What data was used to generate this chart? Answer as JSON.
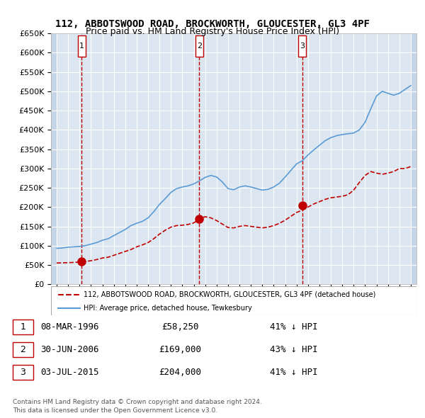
{
  "title": "112, ABBOTSWOOD ROAD, BROCKWORTH, GLOUCESTER, GL3 4PF",
  "subtitle": "Price paid vs. HM Land Registry's House Price Index (HPI)",
  "ylabel_vals": [
    "£0",
    "£50K",
    "£100K",
    "£150K",
    "£200K",
    "£250K",
    "£300K",
    "£350K",
    "£400K",
    "£450K",
    "£500K",
    "£550K",
    "£600K",
    "£650K"
  ],
  "ylim": [
    0,
    650000
  ],
  "yticks": [
    0,
    50000,
    100000,
    150000,
    200000,
    250000,
    300000,
    350000,
    400000,
    450000,
    500000,
    550000,
    600000,
    650000
  ],
  "xlim_start": 1993.5,
  "xlim_end": 2025.5,
  "sale_dates": [
    1996.18,
    2006.49,
    2015.5
  ],
  "sale_prices": [
    58250,
    169000,
    204000
  ],
  "sale_labels": [
    "1",
    "2",
    "3"
  ],
  "sale_date_strings": [
    "08-MAR-1996",
    "30-JUN-2006",
    "03-JUL-2015"
  ],
  "sale_price_strings": [
    "£58,250",
    "£169,000",
    "£204,000"
  ],
  "sale_pct_strings": [
    "41% ↓ HPI",
    "43% ↓ HPI",
    "41% ↓ HPI"
  ],
  "hpi_line_color": "#5b9bd5",
  "price_line_color": "#c00000",
  "dot_color": "#c00000",
  "vline_color": "#c00000",
  "bg_chart": "#dce6f1",
  "bg_hatch": "#c5d5e8",
  "legend_box_color": "#c00000",
  "legend_label_red": "112, ABBOTSWOOD ROAD, BROCKWORTH, GLOUCESTER, GL3 4PF (detached house)",
  "legend_label_blue": "HPI: Average price, detached house, Tewkesbury",
  "footer1": "Contains HM Land Registry data © Crown copyright and database right 2024.",
  "footer2": "This data is licensed under the Open Government Licence v3.0.",
  "hpi_years": [
    1994,
    1994.5,
    1995,
    1995.5,
    1996,
    1996.5,
    1997,
    1997.5,
    1998,
    1998.5,
    1999,
    1999.5,
    2000,
    2000.5,
    2001,
    2001.5,
    2002,
    2002.5,
    2003,
    2003.5,
    2004,
    2004.5,
    2005,
    2005.5,
    2006,
    2006.5,
    2007,
    2007.5,
    2008,
    2008.5,
    2009,
    2009.5,
    2010,
    2010.5,
    2011,
    2011.5,
    2012,
    2012.5,
    2013,
    2013.5,
    2014,
    2014.5,
    2015,
    2015.5,
    2016,
    2016.5,
    2017,
    2017.5,
    2018,
    2018.5,
    2019,
    2019.5,
    2020,
    2020.5,
    2021,
    2021.5,
    2022,
    2022.5,
    2023,
    2023.5,
    2024,
    2024.5,
    2025
  ],
  "hpi_values": [
    93000,
    94000,
    96000,
    97000,
    98000,
    100000,
    104000,
    108000,
    114000,
    118000,
    126000,
    134000,
    142000,
    152000,
    158000,
    163000,
    172000,
    188000,
    207000,
    222000,
    238000,
    248000,
    252000,
    255000,
    260000,
    268000,
    277000,
    282000,
    278000,
    265000,
    248000,
    245000,
    252000,
    255000,
    252000,
    248000,
    244000,
    246000,
    252000,
    262000,
    278000,
    295000,
    312000,
    320000,
    335000,
    348000,
    360000,
    372000,
    380000,
    385000,
    388000,
    390000,
    392000,
    400000,
    420000,
    455000,
    488000,
    500000,
    495000,
    490000,
    495000,
    505000,
    515000
  ],
  "price_years": [
    1994,
    1994.5,
    1995,
    1995.5,
    1996,
    1996.18,
    1996.5,
    1997,
    1997.5,
    1998,
    1998.5,
    1999,
    1999.5,
    2000,
    2000.5,
    2001,
    2001.5,
    2002,
    2002.5,
    2003,
    2003.5,
    2004,
    2004.5,
    2005,
    2005.5,
    2006,
    2006.49,
    2006.5,
    2007,
    2007.5,
    2008,
    2008.5,
    2009,
    2009.5,
    2010,
    2010.5,
    2011,
    2011.5,
    2012,
    2012.5,
    2013,
    2013.5,
    2014,
    2014.5,
    2015,
    2015.5,
    2016,
    2016.5,
    2017,
    2017.5,
    2018,
    2018.5,
    2019,
    2019.5,
    2020,
    2020.5,
    2021,
    2021.5,
    2022,
    2022.5,
    2023,
    2023.5,
    2024,
    2024.5,
    2025
  ],
  "price_values": [
    55000,
    55500,
    56000,
    56500,
    57500,
    58250,
    59000,
    61000,
    64000,
    68000,
    70000,
    75000,
    80000,
    85000,
    90000,
    97000,
    102000,
    108000,
    118000,
    130000,
    140000,
    148000,
    152000,
    153000,
    155000,
    159000,
    169000,
    170000,
    175000,
    172000,
    165000,
    156000,
    147000,
    146000,
    150000,
    152000,
    150000,
    148000,
    146000,
    148000,
    152000,
    158000,
    166000,
    176000,
    186000,
    192000,
    200000,
    208000,
    214000,
    220000,
    224000,
    226000,
    228000,
    232000,
    244000,
    264000,
    282000,
    292000,
    288000,
    285000,
    288000,
    292000,
    300000,
    300000,
    305000
  ]
}
